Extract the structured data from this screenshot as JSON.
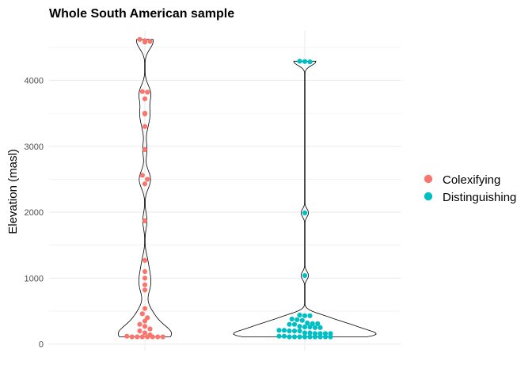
{
  "chart_data": {
    "type": "violin",
    "title": "Whole South American sample",
    "xlabel": "",
    "ylabel": "Elevation (masl)",
    "ylim": [
      -100,
      4750
    ],
    "yticks": [
      0,
      1000,
      2000,
      3000,
      4000
    ],
    "grid": true,
    "legend_position": "right",
    "series": [
      {
        "name": "Colexifying",
        "color": "#F8766D",
        "values": [
          4620,
          4600,
          4590,
          4580,
          3830,
          3820,
          3720,
          3500,
          3490,
          3300,
          2950,
          2560,
          2500,
          2430,
          1870,
          1270,
          1100,
          1000,
          900,
          820,
          540,
          460,
          400,
          350,
          300,
          270,
          230,
          200,
          170,
          140,
          120,
          110,
          110,
          110,
          110,
          110,
          110,
          110
        ]
      },
      {
        "name": "Distinguishing",
        "color": "#00BFC4",
        "values": [
          4290,
          4285,
          4280,
          1990,
          1040,
          440,
          430,
          430,
          380,
          370,
          360,
          320,
          310,
          310,
          300,
          300,
          270,
          260,
          260,
          250,
          250,
          210,
          210,
          200,
          200,
          200,
          170,
          170,
          160,
          160,
          160,
          160,
          120,
          120,
          110,
          110,
          110,
          110,
          110,
          110,
          110,
          110,
          110
        ]
      }
    ]
  }
}
